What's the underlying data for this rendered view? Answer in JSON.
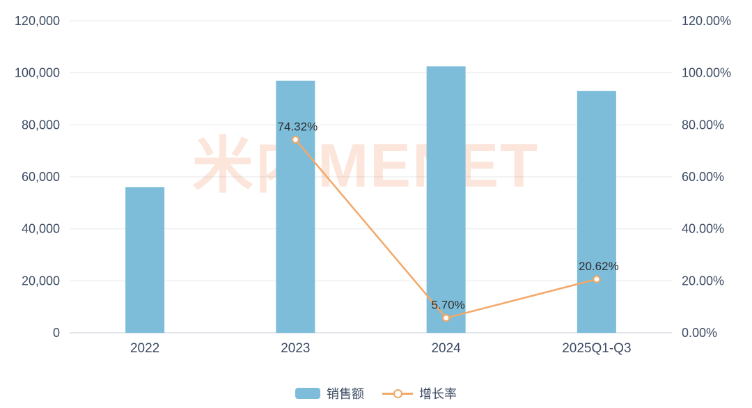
{
  "chart_data": {
    "type": "bar+line",
    "categories": [
      "2022",
      "2023",
      "2024",
      "2025Q1-Q3"
    ],
    "series": [
      {
        "name": "销售额",
        "type": "bar",
        "axis": "left",
        "color": "#7dbdd9",
        "values": [
          56000,
          97000,
          102500,
          93000
        ]
      },
      {
        "name": "增长率",
        "type": "line",
        "axis": "right",
        "color": "#f2a869",
        "values": [
          null,
          74.32,
          5.7,
          20.62
        ],
        "point_labels": [
          "",
          "74.32%",
          "5.70%",
          "20.62%"
        ]
      }
    ],
    "left_axis": {
      "min": 0,
      "max": 120000,
      "step": 20000,
      "tick_labels": [
        "120,000",
        "100,000",
        "80,000",
        "60,000",
        "40,000",
        "20,000",
        "0"
      ]
    },
    "right_axis": {
      "min": 0,
      "max": 120,
      "step": 20,
      "tick_labels": [
        "120.00%",
        "100.00%",
        "80.00%",
        "60.00%",
        "40.00%",
        "20.00%",
        "0.00%"
      ]
    },
    "legend": [
      {
        "label": "销售额",
        "marker": "bar-swatch",
        "color": "#7dbdd9"
      },
      {
        "label": "增长率",
        "marker": "line-circle",
        "color": "#f2a869"
      }
    ],
    "grid": "horizontal",
    "legend_position": "bottom",
    "watermark": "米内MENET"
  }
}
